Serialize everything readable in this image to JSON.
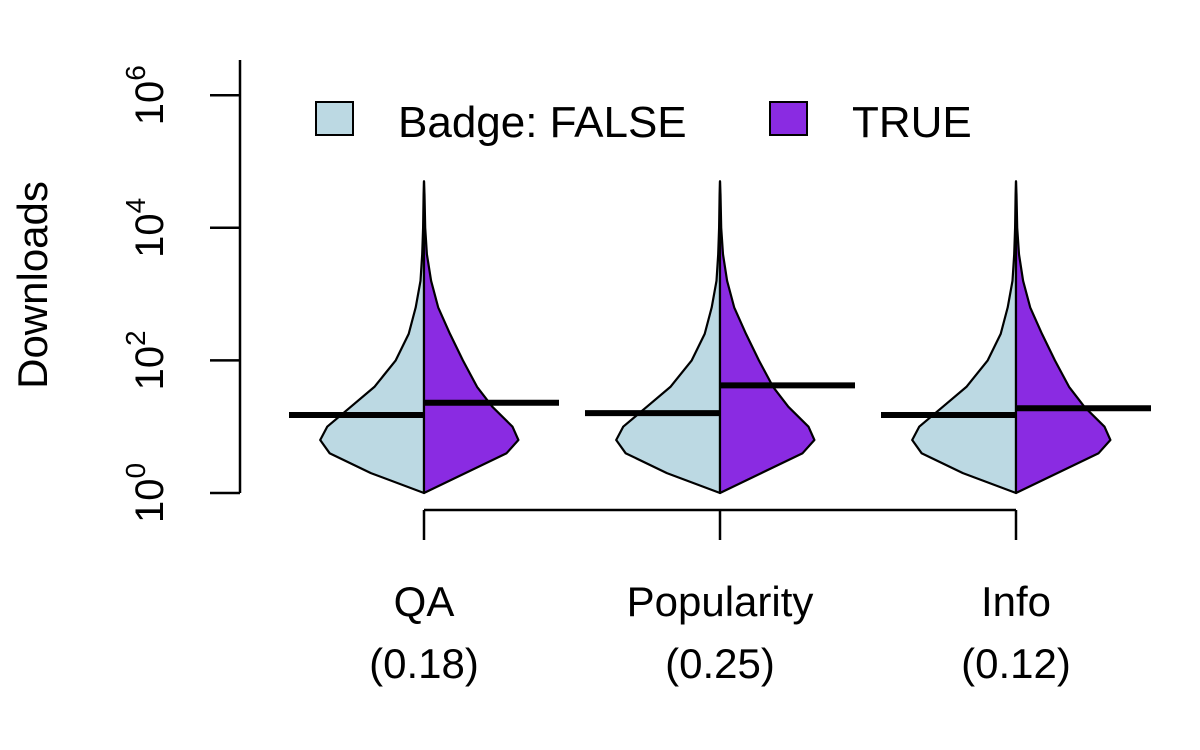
{
  "chart_data": {
    "type": "violin",
    "ylabel": "Downloads",
    "y_scale": "log10",
    "ylim": [
      1,
      1000000
    ],
    "y_ticks": [
      {
        "value": 1,
        "base": "10",
        "exp": "0"
      },
      {
        "value": 100,
        "base": "10",
        "exp": "2"
      },
      {
        "value": 10000,
        "base": "10",
        "exp": "4"
      },
      {
        "value": 1000000,
        "base": "10",
        "exp": "6"
      }
    ],
    "legend": {
      "placement": "top",
      "title": "Badge:",
      "entries": [
        {
          "label": "FALSE",
          "color": "#bcd9e3"
        },
        {
          "label": "TRUE",
          "color": "#8a2be2"
        }
      ]
    },
    "categories": [
      {
        "name": "QA",
        "value_label": "(0.18)",
        "median_false": 15,
        "median_true": 23
      },
      {
        "name": "Popularity",
        "value_label": "(0.25)",
        "median_false": 16,
        "median_true": 42
      },
      {
        "name": "Info",
        "value_label": "(0.12)",
        "median_false": 15,
        "median_true": 19
      }
    ],
    "density_profiles": {
      "false": [
        [
          0,
          0.0
        ],
        [
          0.3,
          0.45
        ],
        [
          0.6,
          0.8
        ],
        [
          0.8,
          0.88
        ],
        [
          1.0,
          0.82
        ],
        [
          1.3,
          0.62
        ],
        [
          1.6,
          0.42
        ],
        [
          2.0,
          0.24
        ],
        [
          2.4,
          0.13
        ],
        [
          2.8,
          0.07
        ],
        [
          3.2,
          0.03
        ],
        [
          3.6,
          0.015
        ],
        [
          4.0,
          0.008
        ],
        [
          4.5,
          0.003
        ],
        [
          5.0,
          0.0
        ]
      ],
      "true": [
        [
          0,
          0.0
        ],
        [
          0.3,
          0.35
        ],
        [
          0.6,
          0.7
        ],
        [
          0.8,
          0.8
        ],
        [
          1.0,
          0.75
        ],
        [
          1.3,
          0.58
        ],
        [
          1.6,
          0.45
        ],
        [
          2.0,
          0.33
        ],
        [
          2.4,
          0.22
        ],
        [
          2.8,
          0.12
        ],
        [
          3.2,
          0.06
        ],
        [
          3.6,
          0.025
        ],
        [
          4.0,
          0.01
        ],
        [
          4.5,
          0.004
        ],
        [
          5.0,
          0.0
        ]
      ]
    },
    "colors": {
      "false": "#bcd9e3",
      "true": "#8a2be2",
      "median": "#000000"
    },
    "grid": false
  }
}
